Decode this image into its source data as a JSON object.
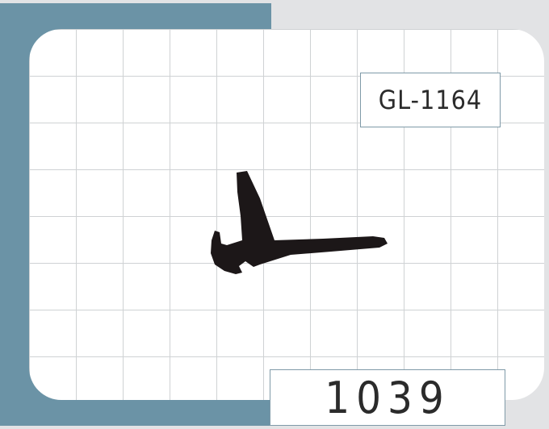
{
  "product": {
    "code": "GL-1164",
    "number": "1039"
  },
  "colors": {
    "frame_band": "#6b93a6",
    "grid_line": "#cfd2d4",
    "profile_fill": "#1c1718",
    "label_border": "#7f9aa8"
  },
  "icons": {
    "profile_shape": "seal-profile-icon"
  }
}
